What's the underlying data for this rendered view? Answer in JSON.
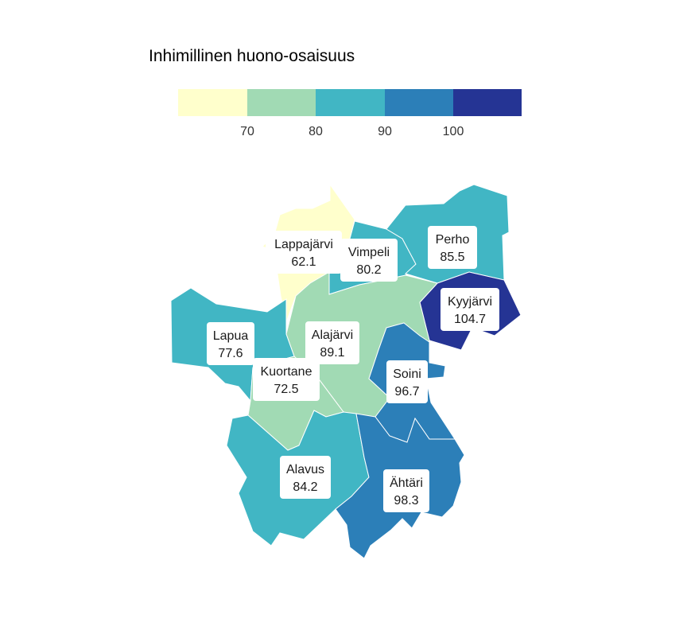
{
  "legend": {
    "title": "Inhimillinen huono-osaisuus",
    "colors": [
      "#ffffcc",
      "#a1dab4",
      "#41b6c4",
      "#2c7fb8",
      "#253494"
    ],
    "ticks": [
      "70",
      "80",
      "90",
      "100"
    ]
  },
  "regions": [
    {
      "name": "Lappajärvi",
      "value": "62.1",
      "color": "#ffffcc"
    },
    {
      "name": "Vimpeli",
      "value": "80.2",
      "color": "#41b6c4"
    },
    {
      "name": "Perho",
      "value": "85.5",
      "color": "#41b6c4"
    },
    {
      "name": "Kyyjärvi",
      "value": "104.7",
      "color": "#253494"
    },
    {
      "name": "Lapua",
      "value": "77.6",
      "color": "#a1dab4"
    },
    {
      "name": "Alajärvi",
      "value": "89.1",
      "color": "#41b6c4"
    },
    {
      "name": "Kuortane",
      "value": "72.5",
      "color": "#a1dab4"
    },
    {
      "name": "Soini",
      "value": "96.7",
      "color": "#2c7fb8"
    },
    {
      "name": "Alavus",
      "value": "84.2",
      "color": "#41b6c4"
    },
    {
      "name": "Ähtäri",
      "value": "98.3",
      "color": "#2c7fb8"
    }
  ]
}
